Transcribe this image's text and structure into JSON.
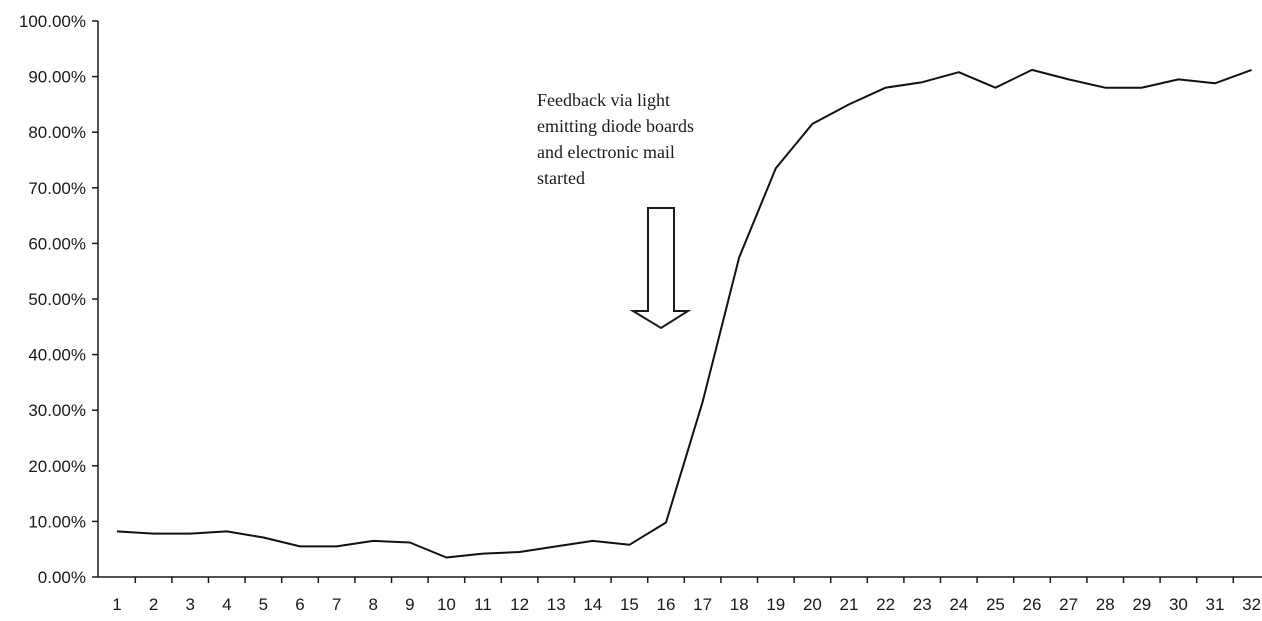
{
  "chart_data": {
    "type": "line",
    "title": "",
    "xlabel": "",
    "ylabel": "",
    "x": [
      1,
      2,
      3,
      4,
      5,
      6,
      7,
      8,
      9,
      10,
      11,
      12,
      13,
      14,
      15,
      16,
      17,
      18,
      19,
      20,
      21,
      22,
      23,
      24,
      25,
      26,
      27,
      28,
      29,
      30,
      31,
      32
    ],
    "series": [
      {
        "values": [
          8.2,
          7.8,
          7.8,
          8.2,
          7.1,
          5.5,
          5.5,
          6.5,
          6.2,
          3.5,
          4.2,
          4.5,
          5.5,
          6.5,
          5.8,
          9.8,
          31.5,
          57.5,
          73.5,
          81.5,
          85.0,
          88.0,
          89.0,
          90.8,
          88.0,
          91.2,
          89.5,
          88.0,
          88.0,
          89.5,
          88.8,
          91.2
        ]
      }
    ],
    "ylim": [
      0,
      100
    ],
    "y_ticks": [
      "0.00%",
      "10.00%",
      "20.00%",
      "30.00%",
      "40.00%",
      "50.00%",
      "60.00%",
      "70.00%",
      "80.00%",
      "90.00%",
      "100.00%"
    ],
    "grid": false,
    "line_color": "#111111",
    "annotation": {
      "lines": [
        "Feedback via light",
        "emitting diode boards",
        "and electronic mail",
        "started"
      ],
      "arrow_at_x": 16
    }
  }
}
